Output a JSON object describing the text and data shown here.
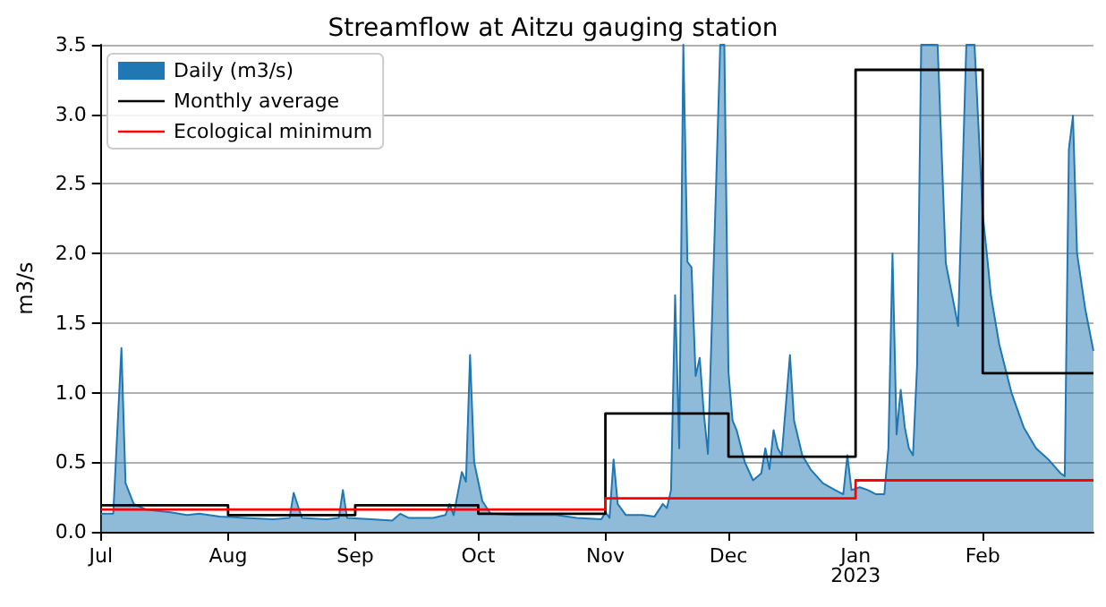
{
  "chart_data": {
    "type": "area",
    "title": "Streamflow at Aitzu gauging station",
    "ylabel": "m3/s",
    "xlim": [
      "2022-07-01",
      "2023-02-28"
    ],
    "xticks": [
      {
        "value": "2022-07-01",
        "label": "Jul"
      },
      {
        "value": "2022-08-01",
        "label": "Aug"
      },
      {
        "value": "2022-09-01",
        "label": "Sep"
      },
      {
        "value": "2022-10-01",
        "label": "Oct"
      },
      {
        "value": "2022-11-01",
        "label": "Nov"
      },
      {
        "value": "2022-12-01",
        "label": "Dec"
      },
      {
        "value": "2023-01-01",
        "label": "Jan\n2023"
      },
      {
        "value": "2023-02-01",
        "label": "Feb"
      }
    ],
    "ylim": [
      0,
      3.5
    ],
    "yticks": [
      {
        "value": 0,
        "label": "0.0"
      },
      {
        "value": 0.5,
        "label": "0.5"
      },
      {
        "value": 1,
        "label": "1.0"
      },
      {
        "value": 1.5,
        "label": "1.5"
      },
      {
        "value": 2,
        "label": "2.0"
      },
      {
        "value": 2.5,
        "label": "2.5"
      },
      {
        "value": 3,
        "label": "3.0"
      },
      {
        "value": 3.5,
        "label": "3.5"
      }
    ],
    "grid": "y",
    "legend": "top left",
    "series": [
      {
        "name": "Daily (m3/s)",
        "type": "area",
        "color": "#1f77b4",
        "x": [
          "2022-07-01",
          "2022-07-04",
          "2022-07-06",
          "2022-07-07",
          "2022-07-09",
          "2022-07-12",
          "2022-07-18",
          "2022-07-22",
          "2022-07-25",
          "2022-07-30",
          "2022-08-05",
          "2022-08-12",
          "2022-08-16",
          "2022-08-17",
          "2022-08-19",
          "2022-08-25",
          "2022-08-28",
          "2022-08-29",
          "2022-08-30",
          "2022-09-05",
          "2022-09-10",
          "2022-09-12",
          "2022-09-14",
          "2022-09-20",
          "2022-09-23",
          "2022-09-24",
          "2022-09-25",
          "2022-09-27",
          "2022-09-28",
          "2022-09-29",
          "2022-09-30",
          "2022-10-02",
          "2022-10-04",
          "2022-10-10",
          "2022-10-20",
          "2022-10-25",
          "2022-10-31",
          "2022-11-01",
          "2022-11-02",
          "2022-11-03",
          "2022-11-04",
          "2022-11-06",
          "2022-11-10",
          "2022-11-13",
          "2022-11-15",
          "2022-11-16",
          "2022-11-17",
          "2022-11-18",
          "2022-11-19",
          "2022-11-20",
          "2022-11-21",
          "2022-11-22",
          "2022-11-23",
          "2022-11-24",
          "2022-11-25",
          "2022-11-26",
          "2022-11-28",
          "2022-11-29",
          "2022-11-30",
          "2022-12-01",
          "2022-12-02",
          "2022-12-03",
          "2022-12-05",
          "2022-12-07",
          "2022-12-09",
          "2022-12-10",
          "2022-12-11",
          "2022-12-12",
          "2022-12-13",
          "2022-12-14",
          "2022-12-16",
          "2022-12-17",
          "2022-12-19",
          "2022-12-21",
          "2022-12-24",
          "2022-12-27",
          "2022-12-29",
          "2022-12-30",
          "2022-12-31",
          "2023-01-02",
          "2023-01-04",
          "2023-01-06",
          "2023-01-08",
          "2023-01-09",
          "2023-01-10",
          "2023-01-11",
          "2023-01-12",
          "2023-01-13",
          "2023-01-14",
          "2023-01-15",
          "2023-01-16",
          "2023-01-17",
          "2023-01-21",
          "2023-01-23",
          "2023-01-26",
          "2023-01-28",
          "2023-01-30",
          "2023-02-01",
          "2023-02-02",
          "2023-02-03",
          "2023-02-05",
          "2023-02-08",
          "2023-02-11",
          "2023-02-14",
          "2023-02-17",
          "2023-02-20",
          "2023-02-21",
          "2023-02-22",
          "2023-02-23",
          "2023-02-24",
          "2023-02-26",
          "2023-02-28"
        ],
        "values": [
          0.13,
          0.13,
          1.32,
          0.35,
          0.2,
          0.16,
          0.14,
          0.12,
          0.13,
          0.11,
          0.1,
          0.09,
          0.1,
          0.28,
          0.1,
          0.09,
          0.1,
          0.3,
          0.1,
          0.09,
          0.08,
          0.13,
          0.1,
          0.1,
          0.12,
          0.2,
          0.12,
          0.43,
          0.36,
          1.27,
          0.5,
          0.22,
          0.13,
          0.12,
          0.12,
          0.1,
          0.09,
          0.14,
          0.1,
          0.52,
          0.2,
          0.12,
          0.12,
          0.11,
          0.2,
          0.17,
          0.3,
          1.7,
          0.6,
          3.5,
          1.94,
          1.9,
          1.12,
          1.25,
          0.85,
          0.56,
          2.5,
          3.5,
          3.5,
          1.15,
          0.8,
          0.73,
          0.5,
          0.37,
          0.42,
          0.6,
          0.45,
          0.73,
          0.6,
          0.55,
          1.27,
          0.8,
          0.55,
          0.45,
          0.35,
          0.3,
          0.27,
          0.55,
          0.3,
          0.32,
          0.3,
          0.27,
          0.27,
          0.6,
          2.0,
          0.7,
          1.02,
          0.75,
          0.6,
          0.55,
          1.2,
          3.5,
          3.5,
          1.93,
          1.48,
          3.5,
          3.5,
          2.28,
          2.0,
          1.7,
          1.35,
          1.0,
          0.75,
          0.6,
          0.52,
          0.42,
          0.4,
          2.75,
          2.99,
          2.0,
          1.6,
          1.3
        ]
      },
      {
        "name": "Monthly average",
        "type": "step",
        "color": "#000000",
        "x": [
          "2022-07-01",
          "2022-08-01",
          "2022-09-01",
          "2022-10-01",
          "2022-11-01",
          "2022-12-01",
          "2023-01-01",
          "2023-02-01",
          "2023-02-28"
        ],
        "values": [
          0.19,
          0.12,
          0.19,
          0.13,
          0.85,
          0.54,
          3.32,
          1.14,
          1.14
        ]
      },
      {
        "name": "Ecological minimum",
        "type": "step",
        "color": "#ff0000",
        "x": [
          "2022-07-01",
          "2022-11-01",
          "2023-01-01",
          "2023-02-28"
        ],
        "values": [
          0.16,
          0.24,
          0.37,
          0.37
        ]
      }
    ]
  }
}
